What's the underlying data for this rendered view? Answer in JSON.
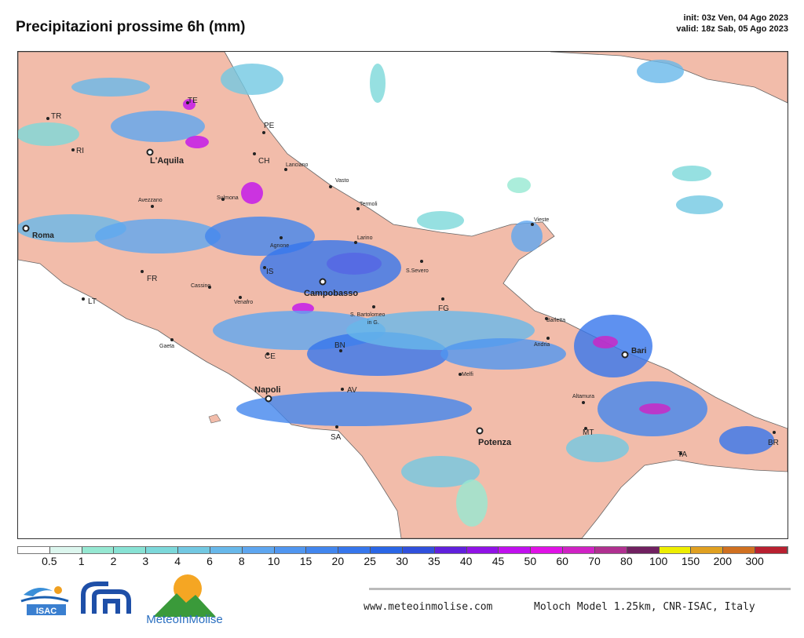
{
  "title": "Precipitazioni prossime 6h (mm)",
  "init": "init: 03z Ven, 04 Ago 2023",
  "valid": "valid: 18z Sab, 05 Ago 2023",
  "map": {
    "land_color": "#f2bcaa",
    "sea_color": "#ffffff",
    "cities": [
      "TE",
      "TR",
      "RI",
      "L'Aquila",
      "PE",
      "CH",
      "Lanciano",
      "Vasto",
      "Termoli",
      "Avezzano",
      "Sulmona",
      "Roma",
      "Agnone",
      "Larino",
      "FR",
      "IS",
      "Campobasso",
      "S.Severo",
      "Cassino",
      "Venafro",
      "LT",
      "S. Bartolomeo",
      "in G.",
      "FG",
      "Vieste",
      "Barletta",
      "Andria",
      "Bari",
      "Gaeta",
      "CE",
      "BN",
      "Melfi",
      "AV",
      "Napoli",
      "Altamura",
      "SA",
      "Potenza",
      "MT",
      "TA",
      "BR"
    ]
  },
  "colorbar": {
    "labels": [
      "0.5",
      "1",
      "2",
      "3",
      "4",
      "6",
      "8",
      "10",
      "15",
      "20",
      "25",
      "30",
      "35",
      "40",
      "45",
      "50",
      "60",
      "70",
      "80",
      "100",
      "150",
      "200",
      "300"
    ],
    "colors": [
      "#ffffff",
      "#dcf6ee",
      "#96e8d2",
      "#88e2d4",
      "#7cd8da",
      "#72c8e2",
      "#68b8ea",
      "#5ea6f0",
      "#5096f0",
      "#4286ee",
      "#3676ec",
      "#2a66e6",
      "#3050dc",
      "#6020dc",
      "#9012e6",
      "#c010ee",
      "#e012e6",
      "#d022c4",
      "#b03090",
      "#702060",
      "#eeee00",
      "#e0a020",
      "#d07020",
      "#b82030"
    ]
  },
  "logos": {
    "isac": "ISAC",
    "cnr": "CNR",
    "meteoinmolise": "MeteoInMolise"
  },
  "footer": {
    "site": "www.meteoinmolise.com",
    "model": "Moloch Model 1.25km, CNR-ISAC, Italy"
  }
}
